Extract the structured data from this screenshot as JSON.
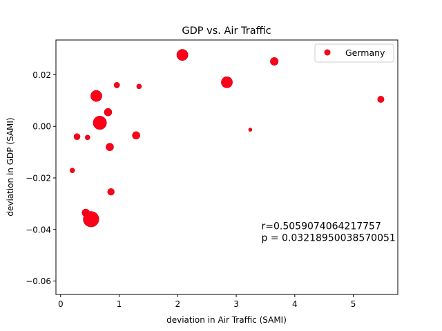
{
  "chart_data": {
    "type": "scatter",
    "title": "GDP vs. Air Traffic",
    "xlabel": "deviation in Air Traffic (SAMI)",
    "ylabel": "deviation in GDP (SAMI)",
    "xlim": [
      -0.08,
      5.76
    ],
    "ylim": [
      -0.0652,
      0.0335
    ],
    "xticks": [
      {
        "value": 0,
        "label": "0"
      },
      {
        "value": 1,
        "label": "1"
      },
      {
        "value": 2,
        "label": "2"
      },
      {
        "value": 3,
        "label": "3"
      },
      {
        "value": 4,
        "label": "4"
      },
      {
        "value": 5,
        "label": "5"
      }
    ],
    "yticks": [
      {
        "value": -0.06,
        "label": "−0.06"
      },
      {
        "value": -0.04,
        "label": "−0.04"
      },
      {
        "value": -0.02,
        "label": "−0.02"
      },
      {
        "value": 0.0,
        "label": "0.00"
      },
      {
        "value": 0.02,
        "label": "0.02"
      }
    ],
    "legend": {
      "position": "top-right",
      "entries": [
        "Germany"
      ]
    },
    "grid": false,
    "marker_color": "#ff0019",
    "marker_edge_color": "#d90015",
    "series": [
      {
        "name": "Germany",
        "points": [
          {
            "x": 2.08,
            "y": 0.0277,
            "size": 2
          },
          {
            "x": 3.65,
            "y": 0.0252,
            "size": 1.4
          },
          {
            "x": 2.84,
            "y": 0.0171,
            "size": 2
          },
          {
            "x": 0.96,
            "y": 0.016,
            "size": 1
          },
          {
            "x": 1.34,
            "y": 0.0155,
            "size": 0.85
          },
          {
            "x": 0.61,
            "y": 0.0118,
            "size": 2
          },
          {
            "x": 5.47,
            "y": 0.0105,
            "size": 1.15
          },
          {
            "x": 0.81,
            "y": 0.0055,
            "size": 1.35
          },
          {
            "x": 0.67,
            "y": 0.0014,
            "size": 2.4
          },
          {
            "x": 3.24,
            "y": -0.0013,
            "size": 0.6
          },
          {
            "x": 0.28,
            "y": -0.004,
            "size": 1.1
          },
          {
            "x": 0.46,
            "y": -0.0043,
            "size": 0.85
          },
          {
            "x": 1.29,
            "y": -0.0035,
            "size": 1.35
          },
          {
            "x": 0.84,
            "y": -0.008,
            "size": 1.35
          },
          {
            "x": 0.2,
            "y": -0.0171,
            "size": 0.85
          },
          {
            "x": 0.86,
            "y": -0.0254,
            "size": 1.2
          },
          {
            "x": 0.43,
            "y": -0.0335,
            "size": 1.35
          },
          {
            "x": 0.52,
            "y": -0.036,
            "size": 2.8
          }
        ]
      }
    ],
    "annotations": [
      {
        "text": "r=0.5059074064217757",
        "x": 3.43,
        "y": -0.0399
      },
      {
        "text": "p = 0.03218950038570051",
        "x": 3.43,
        "y": -0.0445
      }
    ]
  }
}
